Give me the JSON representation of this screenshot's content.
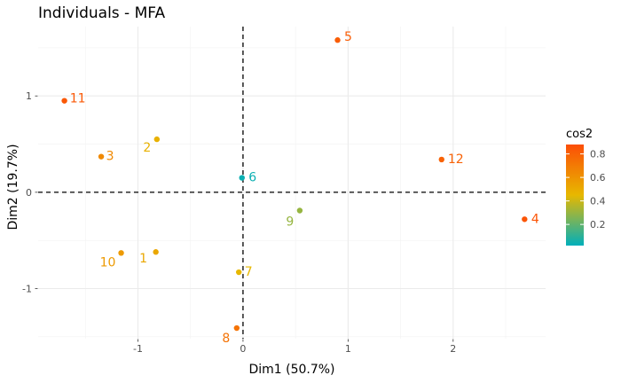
{
  "chart_data": {
    "type": "scatter",
    "title": "Individuals - MFA",
    "xlabel": "Dim1 (50.7%)",
    "ylabel": "Dim2 (19.7%)",
    "xlim": [
      -1.95,
      2.88
    ],
    "ylim": [
      -1.52,
      1.72
    ],
    "x_ticks": [
      -1,
      0,
      1,
      2
    ],
    "y_ticks": [
      -1,
      0,
      1
    ],
    "grid": true,
    "reference_lines": {
      "x": 0,
      "y": 0,
      "style": "dashed"
    },
    "legend": {
      "title": "cos2",
      "position": "right",
      "ticks": [
        0.2,
        0.4,
        0.6,
        0.8
      ],
      "range": [
        0.02,
        0.88
      ],
      "colors": [
        "#00AFBB",
        "#E7B800",
        "#FC4E07"
      ]
    },
    "points": [
      {
        "label": "1",
        "x": -0.83,
        "y": -0.62,
        "cos2": 0.52
      },
      {
        "label": "2",
        "x": -0.82,
        "y": 0.55,
        "cos2": 0.48
      },
      {
        "label": "3",
        "x": -1.35,
        "y": 0.37,
        "cos2": 0.64
      },
      {
        "label": "4",
        "x": 2.68,
        "y": -0.28,
        "cos2": 0.85
      },
      {
        "label": "5",
        "x": 0.9,
        "y": 1.58,
        "cos2": 0.82
      },
      {
        "label": "6",
        "x": -0.01,
        "y": 0.15,
        "cos2": 0.04
      },
      {
        "label": "7",
        "x": -0.04,
        "y": -0.83,
        "cos2": 0.45
      },
      {
        "label": "8",
        "x": -0.06,
        "y": -1.41,
        "cos2": 0.73
      },
      {
        "label": "9",
        "x": 0.54,
        "y": -0.19,
        "cos2": 0.3
      },
      {
        "label": "10",
        "x": -1.16,
        "y": -0.63,
        "cos2": 0.57
      },
      {
        "label": "11",
        "x": -1.7,
        "y": 0.95,
        "cos2": 0.84
      },
      {
        "label": "12",
        "x": 1.89,
        "y": 0.34,
        "cos2": 0.8
      }
    ]
  }
}
